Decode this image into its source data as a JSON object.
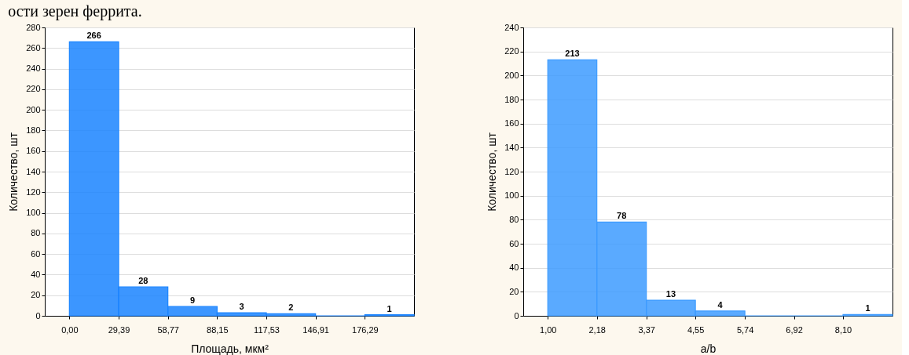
{
  "chart_data": [
    {
      "type": "histogram",
      "annotations": [
        "ости зерен феррита."
      ],
      "xlabel": "Площадь, мкм²",
      "ylabel": "Количество, шт",
      "bins": [
        0,
        29.39,
        58.77,
        88.15,
        117.53,
        146.91,
        176.29,
        205.67
      ],
      "values": [
        266,
        28,
        9,
        3,
        2,
        0,
        1
      ],
      "value_labels": [
        "266",
        "28",
        "9",
        "3",
        "2",
        null,
        "1"
      ],
      "color": "#1a84ff",
      "xlim": [
        -14.69,
        205.67
      ],
      "xticks": [
        {
          "value": 0,
          "label": "0,00"
        },
        {
          "value": 29.39,
          "label": "29,39"
        },
        {
          "value": 58.77,
          "label": "58,77"
        },
        {
          "value": 88.15,
          "label": "88,15"
        },
        {
          "value": 117.53,
          "label": "117,53"
        },
        {
          "value": 146.91,
          "label": "146,91"
        },
        {
          "value": 176.29,
          "label": "176,29"
        }
      ],
      "ylim": [
        0,
        280
      ],
      "yticks": [
        0,
        20,
        40,
        60,
        80,
        100,
        120,
        140,
        160,
        180,
        200,
        220,
        240,
        260,
        280
      ],
      "grid": "y"
    },
    {
      "type": "histogram",
      "xlabel": "a/b",
      "ylabel": "Количество, шт",
      "bins": [
        1.0,
        2.18,
        3.37,
        4.55,
        5.74,
        6.92,
        8.1,
        9.29
      ],
      "values": [
        213,
        78,
        13,
        4,
        0,
        0,
        1
      ],
      "value_labels": [
        "213",
        "78",
        "13",
        "4",
        null,
        null,
        "1"
      ],
      "color": "#3d9bff",
      "xlim": [
        0.41,
        9.29
      ],
      "xticks": [
        {
          "value": 1,
          "label": "1,00"
        },
        {
          "value": 2.18,
          "label": "2,18"
        },
        {
          "value": 3.37,
          "label": "3,37"
        },
        {
          "value": 4.55,
          "label": "4,55"
        },
        {
          "value": 5.74,
          "label": "5,74"
        },
        {
          "value": 6.92,
          "label": "6,92"
        },
        {
          "value": 8.1,
          "label": "8,10"
        }
      ],
      "ylim": [
        0,
        240
      ],
      "yticks": [
        0,
        20,
        40,
        60,
        80,
        100,
        120,
        140,
        160,
        180,
        200,
        220,
        240
      ],
      "grid": "y"
    }
  ]
}
